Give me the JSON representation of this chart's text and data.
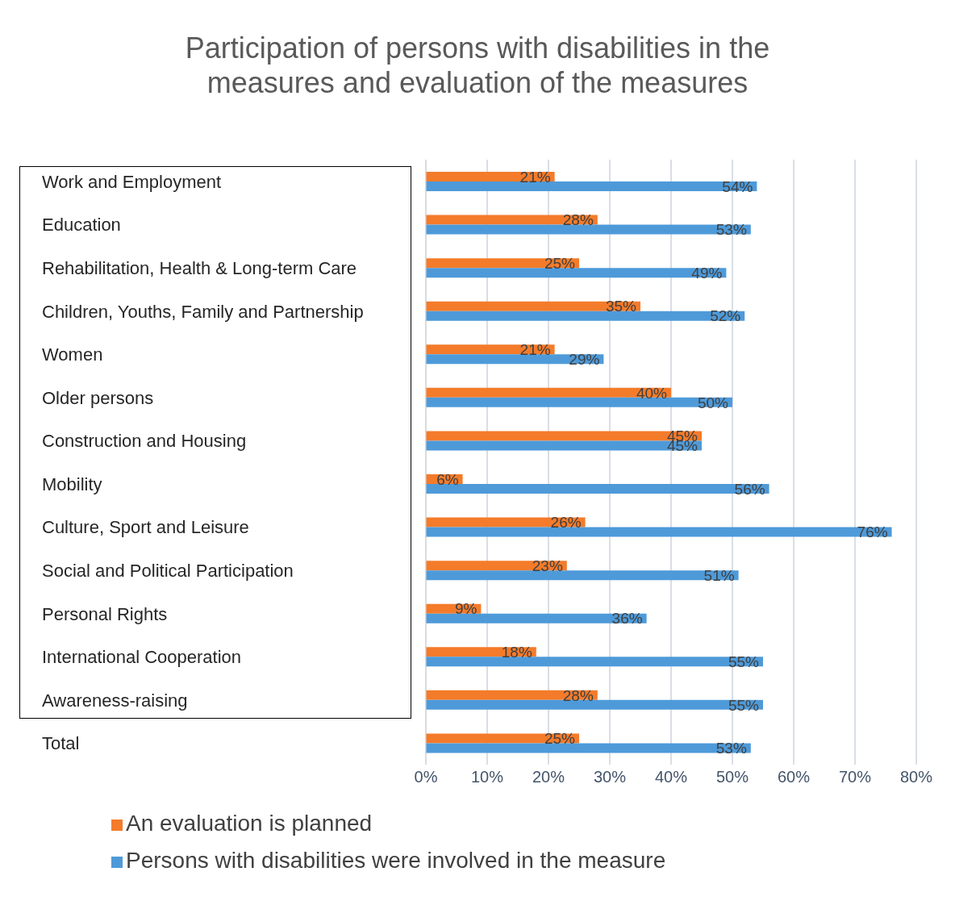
{
  "chart_data": {
    "type": "bar",
    "orientation": "horizontal",
    "title": "Participation of persons with disabilities in the measures and evaluation of the measures",
    "categories": [
      "Work and Employment",
      "Education",
      "Rehabilitation, Health & Long-term Care",
      "Children, Youths, Family and Partnership",
      "Women",
      "Older persons",
      "Construction and Housing",
      "Mobility",
      "Culture, Sport and Leisure",
      "Social and Political Participation",
      "Personal Rights",
      "International Cooperation",
      "Awareness-raising",
      "Total"
    ],
    "series": [
      {
        "name": "An evaluation is planned",
        "color": "#f47b2a",
        "values": [
          21,
          28,
          25,
          35,
          21,
          40,
          45,
          6,
          26,
          23,
          9,
          18,
          28,
          25
        ],
        "value_labels": [
          "21%",
          "28%",
          "25%",
          "35%",
          "21%",
          "40%",
          "45%",
          "6%",
          "26%",
          "23%",
          "9%",
          "18%",
          "28%",
          "25%"
        ]
      },
      {
        "name": "Persons with disabilities were involved in the measure",
        "color": "#4e9ad9",
        "values": [
          54,
          53,
          49,
          52,
          29,
          50,
          45,
          56,
          76,
          51,
          36,
          55,
          55,
          53
        ],
        "value_labels": [
          "54%",
          "53%",
          "49%",
          "52%",
          "29%",
          "50%",
          "45%",
          "56%",
          "76%",
          "51%",
          "36%",
          "55%",
          "55%",
          "53%"
        ]
      }
    ],
    "xlim": [
      0,
      80
    ],
    "xticks": [
      {
        "value": 0,
        "label": "0%"
      },
      {
        "value": 10,
        "label": "10%"
      },
      {
        "value": 20,
        "label": "20%"
      },
      {
        "value": 30,
        "label": "30%"
      },
      {
        "value": 40,
        "label": "40%"
      },
      {
        "value": 50,
        "label": "50%"
      },
      {
        "value": 60,
        "label": "60%"
      },
      {
        "value": 70,
        "label": "70%"
      },
      {
        "value": 80,
        "label": "80%"
      }
    ],
    "grid": "x",
    "legend": "bottom left"
  }
}
